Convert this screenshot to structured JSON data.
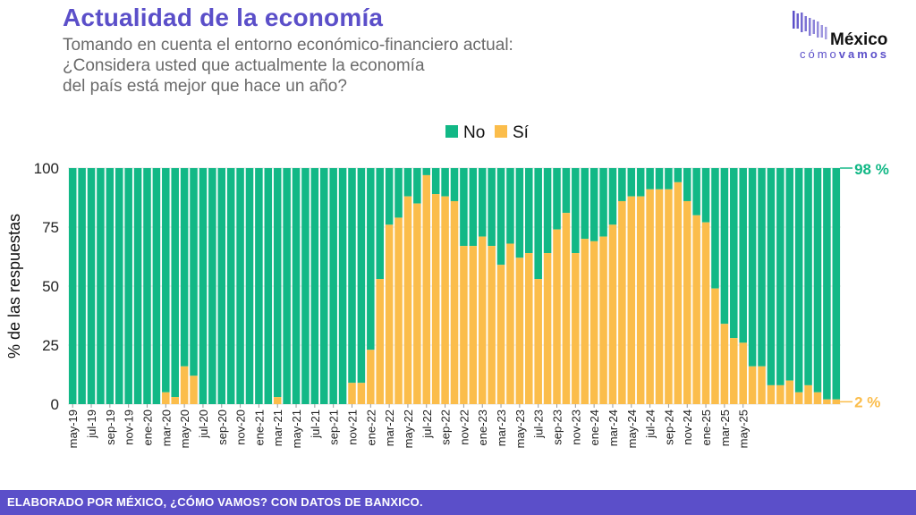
{
  "header": {
    "title": "Actualidad de la economía",
    "subtitle_lines": [
      "Tomando en cuenta el entorno económico-financiero actual:",
      "¿Considera usted que actualmente la economía",
      "del país está mejor que hace un año?"
    ]
  },
  "logo": {
    "main": "México",
    "sub_light": "cómo",
    "sub_bold": "vamos"
  },
  "footer": {
    "text": "ELABORADO POR MÉXICO, ¿CÓMO VAMOS? CON DATOS DE BANXICO."
  },
  "colors": {
    "no": "#12b886",
    "si": "#fbbd4b",
    "accent": "#5b4fc9"
  },
  "chart_data": {
    "type": "bar",
    "stacked": true,
    "ylabel": "% de las respuestas",
    "ylim": [
      0,
      100
    ],
    "yticks": [
      0,
      25,
      50,
      75,
      100
    ],
    "legend": {
      "position": "top-center",
      "items": [
        "No",
        "Sí"
      ]
    },
    "series_names": [
      "No",
      "Sí"
    ],
    "x_tick_labels": [
      "may-19",
      "jul-19",
      "sep-19",
      "nov-19",
      "ene-20",
      "mar-20",
      "may-20",
      "jul-20",
      "sep-20",
      "nov-20",
      "ene-21",
      "mar-21",
      "may-21",
      "jul-21",
      "sep-21",
      "nov-21",
      "ene-22",
      "mar-22",
      "may-22",
      "jul-22",
      "sep-22",
      "nov-22",
      "ene-23",
      "mar-23",
      "may-23",
      "jul-23",
      "sep-23",
      "nov-23",
      "ene-24",
      "mar-24",
      "may-24",
      "jul-24",
      "sep-24",
      "nov-24",
      "ene-25",
      "mar-25",
      "may-25"
    ],
    "si": [
      0,
      0,
      0,
      0,
      0,
      0,
      0,
      0,
      0,
      0,
      5,
      3,
      16,
      12,
      0,
      0,
      0,
      0,
      0,
      0,
      0,
      0,
      3,
      0,
      0,
      0,
      0,
      0,
      0,
      0,
      9,
      9,
      23,
      53,
      76,
      79,
      88,
      85,
      97,
      89,
      88,
      86,
      67,
      67,
      71,
      67,
      59,
      68,
      62,
      64,
      53,
      64,
      74,
      81,
      64,
      70,
      69,
      71,
      76,
      86,
      88,
      88,
      91,
      91,
      91,
      94,
      86,
      80,
      77,
      49,
      34,
      28,
      26,
      16,
      16,
      8,
      8,
      10,
      5,
      8,
      5,
      2,
      2
    ],
    "end_labels": {
      "no": "98 %",
      "si": "2 %"
    }
  }
}
